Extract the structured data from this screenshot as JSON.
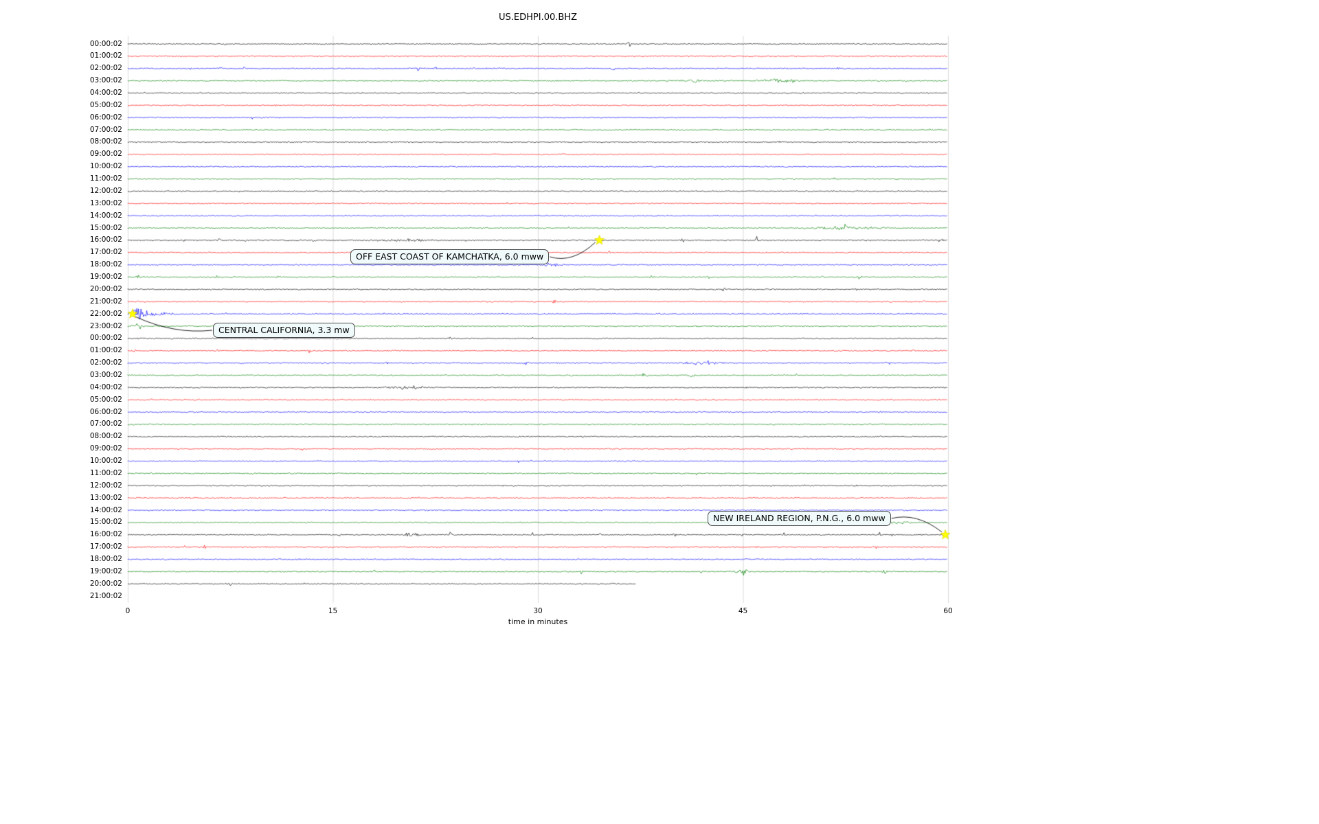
{
  "page": {
    "background": "#ffffff"
  },
  "chart_data": {
    "type": "line",
    "subtype": "seismogram-helicorder-dayplot",
    "title": "US.EDHPI.00.BHZ",
    "xlabel": "time in minutes",
    "xlim": [
      0,
      60
    ],
    "x_ticks": [
      "0",
      "15",
      "30",
      "45",
      "60"
    ],
    "x_tick_values": [
      0,
      15,
      30,
      45,
      60
    ],
    "grid": true,
    "grid_color": "#d0d0d0",
    "color_cycle": [
      "#000000",
      "#ff0000",
      "#0000ff",
      "#008000"
    ],
    "star_color": "#ffff00",
    "rows": [
      {
        "label": "00:00:02",
        "color": "#000000"
      },
      {
        "label": "01:00:02",
        "color": "#ff0000"
      },
      {
        "label": "02:00:02",
        "color": "#0000ff"
      },
      {
        "label": "03:00:02",
        "color": "#008000"
      },
      {
        "label": "04:00:02",
        "color": "#000000"
      },
      {
        "label": "05:00:02",
        "color": "#ff0000"
      },
      {
        "label": "06:00:02",
        "color": "#0000ff"
      },
      {
        "label": "07:00:02",
        "color": "#008000"
      },
      {
        "label": "08:00:02",
        "color": "#000000"
      },
      {
        "label": "09:00:02",
        "color": "#ff0000"
      },
      {
        "label": "10:00:02",
        "color": "#0000ff"
      },
      {
        "label": "11:00:02",
        "color": "#008000"
      },
      {
        "label": "12:00:02",
        "color": "#000000"
      },
      {
        "label": "13:00:02",
        "color": "#ff0000"
      },
      {
        "label": "14:00:02",
        "color": "#0000ff"
      },
      {
        "label": "15:00:02",
        "color": "#008000"
      },
      {
        "label": "16:00:02",
        "color": "#000000"
      },
      {
        "label": "17:00:02",
        "color": "#ff0000"
      },
      {
        "label": "18:00:02",
        "color": "#0000ff"
      },
      {
        "label": "19:00:02",
        "color": "#008000"
      },
      {
        "label": "20:00:02",
        "color": "#000000"
      },
      {
        "label": "21:00:02",
        "color": "#ff0000"
      },
      {
        "label": "22:00:02",
        "color": "#0000ff"
      },
      {
        "label": "23:00:02",
        "color": "#008000"
      },
      {
        "label": "00:00:02",
        "color": "#000000"
      },
      {
        "label": "01:00:02",
        "color": "#ff0000"
      },
      {
        "label": "02:00:02",
        "color": "#0000ff"
      },
      {
        "label": "03:00:02",
        "color": "#008000"
      },
      {
        "label": "04:00:02",
        "color": "#000000"
      },
      {
        "label": "05:00:02",
        "color": "#ff0000"
      },
      {
        "label": "06:00:02",
        "color": "#0000ff"
      },
      {
        "label": "07:00:02",
        "color": "#008000"
      },
      {
        "label": "08:00:02",
        "color": "#000000"
      },
      {
        "label": "09:00:02",
        "color": "#ff0000"
      },
      {
        "label": "10:00:02",
        "color": "#0000ff"
      },
      {
        "label": "11:00:02",
        "color": "#008000"
      },
      {
        "label": "12:00:02",
        "color": "#000000"
      },
      {
        "label": "13:00:02",
        "color": "#ff0000"
      },
      {
        "label": "14:00:02",
        "color": "#0000ff"
      },
      {
        "label": "15:00:02",
        "color": "#008000"
      },
      {
        "label": "16:00:02",
        "color": "#000000"
      },
      {
        "label": "17:00:02",
        "color": "#ff0000"
      },
      {
        "label": "18:00:02",
        "color": "#0000ff"
      },
      {
        "label": "19:00:02",
        "color": "#008000"
      },
      {
        "label": "20:00:02",
        "color": "#000000",
        "end_minute": 37.2
      },
      {
        "label": "21:00:02",
        "color": "#ff0000",
        "empty": true
      }
    ],
    "events": [
      {
        "label": "OFF EAST COAST OF KAMCHATKA, 6.0 mww",
        "row_index": 16,
        "minute": 34.5
      },
      {
        "label": "CENTRAL CALIFORNIA, 3.3 mw",
        "row_index": 22,
        "minute": 0.35
      },
      {
        "label": "NEW IRELAND REGION, P.N.G., 6.0 mww",
        "row_index": 40,
        "minute": 59.8
      }
    ],
    "bursts": [
      {
        "r": 0,
        "m": 36.7,
        "w": 0.08,
        "a": 7
      },
      {
        "r": 2,
        "m": 4.7,
        "w": 0.1,
        "a": 4
      },
      {
        "r": 2,
        "m": 6.8,
        "w": 0.08,
        "a": 3
      },
      {
        "r": 2,
        "m": 8.5,
        "w": 0.08,
        "a": 3
      },
      {
        "r": 2,
        "m": 21.2,
        "w": 0.1,
        "a": 4
      },
      {
        "r": 2,
        "m": 22.5,
        "w": 0.08,
        "a": 3
      },
      {
        "r": 2,
        "m": 25.2,
        "w": 0.08,
        "a": 2.5
      },
      {
        "r": 2,
        "m": 35.5,
        "w": 0.1,
        "a": 3
      },
      {
        "r": 2,
        "m": 52.0,
        "w": 0.1,
        "a": 2.5
      },
      {
        "r": 3,
        "m": 41.5,
        "w": 0.8,
        "a": 2.5
      },
      {
        "r": 3,
        "m": 48.0,
        "w": 1.0,
        "a": 3
      },
      {
        "r": 15,
        "m": 52.5,
        "w": 1.5,
        "a": 3.5
      },
      {
        "r": 16,
        "m": 4.2,
        "w": 0.07,
        "a": 6
      },
      {
        "r": 16,
        "m": 6.7,
        "w": 0.07,
        "a": 4
      },
      {
        "r": 16,
        "m": 8.6,
        "w": 0.07,
        "a": 4
      },
      {
        "r": 16,
        "m": 13.6,
        "w": 0.07,
        "a": 5
      },
      {
        "r": 16,
        "m": 20.0,
        "w": 1.2,
        "a": 2
      },
      {
        "r": 16,
        "m": 40.6,
        "w": 0.08,
        "a": 4
      },
      {
        "r": 16,
        "m": 46.0,
        "w": 0.08,
        "a": 4
      },
      {
        "r": 16,
        "m": 59.6,
        "w": 0.08,
        "a": 4
      },
      {
        "r": 17,
        "m": 5.0,
        "w": 0.07,
        "a": 4
      },
      {
        "r": 17,
        "m": 35.2,
        "w": 0.07,
        "a": 3
      },
      {
        "r": 18,
        "m": 31.0,
        "w": 0.5,
        "a": 3.5
      },
      {
        "r": 19,
        "m": 0.7,
        "w": 0.1,
        "a": 6
      },
      {
        "r": 19,
        "m": 6.5,
        "w": 0.07,
        "a": 3
      },
      {
        "r": 19,
        "m": 11.0,
        "w": 0.08,
        "a": 4
      },
      {
        "r": 19,
        "m": 38.3,
        "w": 0.08,
        "a": 3
      },
      {
        "r": 19,
        "m": 42.5,
        "w": 0.1,
        "a": 3.5
      },
      {
        "r": 19,
        "m": 50.8,
        "w": 0.15,
        "a": 3.5
      },
      {
        "r": 19,
        "m": 53.5,
        "w": 0.15,
        "a": 3
      },
      {
        "r": 20,
        "m": 43.6,
        "w": 0.08,
        "a": 5
      },
      {
        "r": 20,
        "m": 53.2,
        "w": 0.08,
        "a": 3
      },
      {
        "r": 21,
        "m": 26.7,
        "w": 0.08,
        "a": 4
      },
      {
        "r": 21,
        "m": 31.2,
        "w": 0.08,
        "a": 4
      },
      {
        "r": 22,
        "m": 0.8,
        "w": 0.35,
        "a": 13
      },
      {
        "r": 22,
        "m": 2.0,
        "w": 0.8,
        "a": 3
      },
      {
        "r": 23,
        "m": 0.7,
        "w": 0.25,
        "a": 5
      },
      {
        "r": 24,
        "m": 23.6,
        "w": 0.08,
        "a": 5
      },
      {
        "r": 25,
        "m": 0.5,
        "w": 0.1,
        "a": 4
      },
      {
        "r": 25,
        "m": 6.6,
        "w": 0.08,
        "a": 3
      },
      {
        "r": 25,
        "m": 13.3,
        "w": 0.12,
        "a": 4
      },
      {
        "r": 25,
        "m": 57.5,
        "w": 0.1,
        "a": 3
      },
      {
        "r": 26,
        "m": 19.0,
        "w": 0.08,
        "a": 3
      },
      {
        "r": 26,
        "m": 29.2,
        "w": 0.1,
        "a": 4
      },
      {
        "r": 26,
        "m": 42.0,
        "w": 0.8,
        "a": 4
      },
      {
        "r": 27,
        "m": 37.8,
        "w": 0.15,
        "a": 4
      },
      {
        "r": 27,
        "m": 41.2,
        "w": 0.15,
        "a": 4
      },
      {
        "r": 27,
        "m": 48.8,
        "w": 0.12,
        "a": 4
      },
      {
        "r": 28,
        "m": 20.5,
        "w": 0.8,
        "a": 3
      },
      {
        "r": 39,
        "m": 45.8,
        "w": 0.3,
        "a": 4.5
      },
      {
        "r": 39,
        "m": 56.0,
        "w": 0.8,
        "a": 3
      },
      {
        "r": 40,
        "m": 9.5,
        "w": 0.08,
        "a": 3
      },
      {
        "r": 40,
        "m": 15.5,
        "w": 0.1,
        "a": 4
      },
      {
        "r": 40,
        "m": 17.0,
        "w": 0.1,
        "a": 4
      },
      {
        "r": 40,
        "m": 20.5,
        "w": 0.4,
        "a": 4
      },
      {
        "r": 40,
        "m": 23.6,
        "w": 0.1,
        "a": 4
      },
      {
        "r": 40,
        "m": 29.6,
        "w": 0.08,
        "a": 3
      },
      {
        "r": 40,
        "m": 34.6,
        "w": 0.08,
        "a": 3
      },
      {
        "r": 40,
        "m": 40.0,
        "w": 0.08,
        "a": 3
      },
      {
        "r": 40,
        "m": 45.0,
        "w": 0.08,
        "a": 3
      },
      {
        "r": 40,
        "m": 48.0,
        "w": 0.08,
        "a": 3
      },
      {
        "r": 40,
        "m": 55.0,
        "w": 0.08,
        "a": 3
      },
      {
        "r": 41,
        "m": 5.6,
        "w": 0.08,
        "a": 4
      },
      {
        "r": 41,
        "m": 10.0,
        "w": 0.08,
        "a": 3
      },
      {
        "r": 42,
        "m": 12.4,
        "w": 0.1,
        "a": 4
      },
      {
        "r": 43,
        "m": 33.2,
        "w": 0.1,
        "a": 3
      },
      {
        "r": 43,
        "m": 42.0,
        "w": 0.15,
        "a": 4
      },
      {
        "r": 43,
        "m": 44.9,
        "w": 0.25,
        "a": 8
      },
      {
        "r": 43,
        "m": 55.3,
        "w": 0.15,
        "a": 4
      },
      {
        "r": 44,
        "m": 7.5,
        "w": 0.15,
        "a": 4
      }
    ]
  }
}
